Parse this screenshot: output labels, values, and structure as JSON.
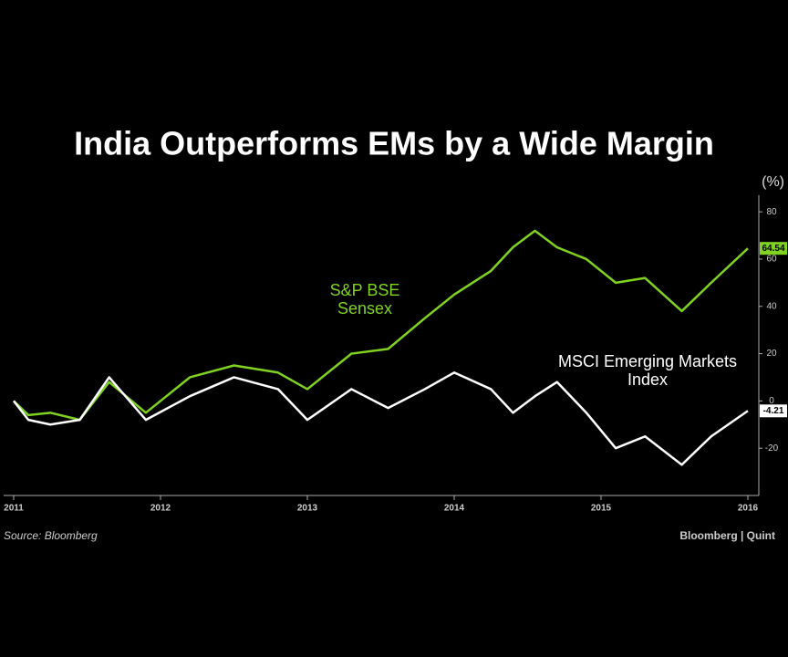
{
  "chart_data": {
    "type": "line",
    "title": "India Outperforms EMs by a Wide Margin",
    "ylabel": "(%)",
    "source": "Source: Bloomberg",
    "brand": "Bloomberg | Quint",
    "x": [
      2011.0,
      2011.1,
      2011.25,
      2011.45,
      2011.65,
      2011.9,
      2012.2,
      2012.5,
      2012.8,
      2013.0,
      2013.3,
      2013.55,
      2013.8,
      2014.0,
      2014.25,
      2014.4,
      2014.55,
      2014.7,
      2014.9,
      2015.1,
      2015.3,
      2015.55,
      2015.75,
      2016.0
    ],
    "series": [
      {
        "name": "S&P BSE Sensex",
        "color": "#7fd320",
        "values": [
          0,
          -6,
          -5,
          -8,
          8,
          -5,
          10,
          15,
          12,
          5,
          20,
          22,
          35,
          45,
          55,
          65,
          72,
          65,
          60,
          50,
          52,
          38,
          50,
          64.54
        ]
      },
      {
        "name": "MSCI Emerging Markets Index",
        "color": "#ffffff",
        "values": [
          0,
          -8,
          -10,
          -8,
          10,
          -8,
          2,
          10,
          5,
          -8,
          5,
          -3,
          5,
          12,
          5,
          -5,
          2,
          8,
          -5,
          -20,
          -15,
          -27,
          -15,
          -4.21
        ]
      }
    ],
    "xlim": [
      2011,
      2016
    ],
    "xticks": [
      2011,
      2012,
      2013,
      2014,
      2015,
      2016
    ],
    "ylim": [
      -40,
      87
    ],
    "yticks": [
      -20,
      0,
      20,
      40,
      60,
      80
    ],
    "grid": false
  }
}
